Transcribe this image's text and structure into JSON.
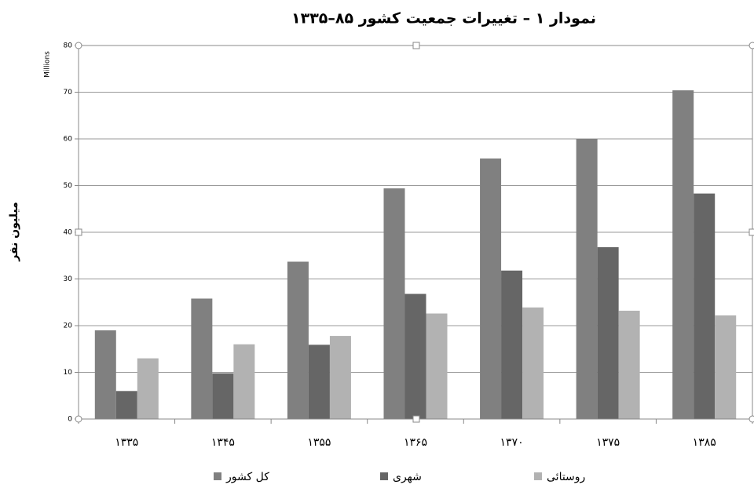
{
  "chart_data": {
    "type": "bar",
    "title": "نمودار ۱ – تغییرات جمعیت کشور ۸۵–۱۳۳۵",
    "y_label": "میلیون نفر",
    "y_unit_label": "Millions",
    "categories": [
      "۱۳۳۵",
      "۱۳۴۵",
      "۱۳۵۵",
      "۱۳۶۵",
      "۱۳۷۰",
      "۱۳۷۵",
      "۱۳۸۵"
    ],
    "series": [
      {
        "name": "کل کشور",
        "color": "#808080",
        "values": [
          19,
          25.8,
          33.7,
          49.4,
          55.8,
          60,
          70.4
        ]
      },
      {
        "name": "شهری",
        "color": "#666666",
        "values": [
          6,
          9.8,
          15.9,
          26.8,
          31.8,
          36.8,
          48.3
        ]
      },
      {
        "name": "روستائی",
        "color": "#b2b2b2",
        "values": [
          13,
          16,
          17.8,
          22.6,
          23.9,
          23.2,
          22.2
        ]
      }
    ],
    "ylim": [
      0,
      80
    ],
    "yticks": [
      0,
      10,
      20,
      30,
      40,
      50,
      60,
      70,
      80
    ],
    "grid": true,
    "legend": "bottom"
  }
}
